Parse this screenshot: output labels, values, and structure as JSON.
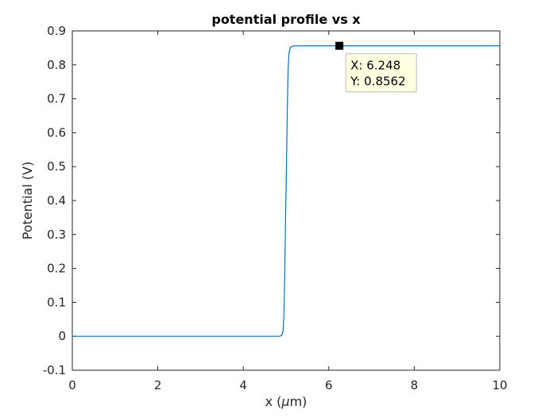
{
  "chart_data": {
    "type": "line",
    "title": "potential profile vs x",
    "xlabel_prefix": "x (",
    "xlabel_mu": "μ",
    "xlabel_suffix": "m)",
    "ylabel": "Potential (V)",
    "xlim": [
      0,
      10
    ],
    "ylim": [
      -0.1,
      0.9
    ],
    "xticks": [
      0,
      2,
      4,
      6,
      8,
      10
    ],
    "xtick_labels": [
      "0",
      "2",
      "4",
      "6",
      "8",
      "10"
    ],
    "yticks": [
      -0.1,
      0,
      0.1,
      0.2,
      0.3,
      0.4,
      0.5,
      0.6,
      0.7,
      0.8,
      0.9
    ],
    "ytick_labels": [
      "-0.1",
      "0",
      "0.1",
      "0.2",
      "0.3",
      "0.4",
      "0.5",
      "0.6",
      "0.7",
      "0.8",
      "0.9"
    ],
    "grid": false,
    "series": [
      {
        "color": "#0072BD",
        "x": [
          0,
          1,
          2,
          3,
          4,
          4.5,
          4.85,
          4.9,
          4.93,
          4.95,
          4.97,
          4.99,
          5.0,
          5.01,
          5.03,
          5.05,
          5.07,
          5.1,
          5.15,
          5.2,
          5.5,
          6,
          6.248,
          7,
          8,
          9,
          10
        ],
        "y": [
          0,
          0,
          0,
          0,
          0,
          0,
          0,
          0.003,
          0.015,
          0.06,
          0.18,
          0.36,
          0.43,
          0.5,
          0.67,
          0.79,
          0.835,
          0.851,
          0.855,
          0.856,
          0.8562,
          0.8562,
          0.8562,
          0.8562,
          0.8562,
          0.8562,
          0.8562
        ]
      }
    ],
    "datatip": {
      "x": 6.248,
      "y": 0.8562,
      "label_x": "X: 6.248",
      "label_y": "Y: 0.8562"
    }
  }
}
